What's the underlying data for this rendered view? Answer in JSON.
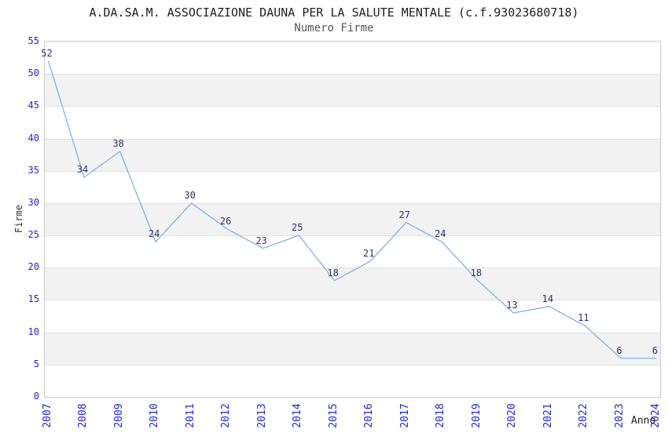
{
  "chart_data": {
    "type": "line",
    "title": "A.DA.SA.M. ASSOCIAZIONE DAUNA PER LA SALUTE MENTALE (c.f.93023680718)",
    "subtitle": "Numero Firme",
    "xlabel": "Anno",
    "ylabel": "Firme",
    "categories": [
      "2007",
      "2008",
      "2009",
      "2010",
      "2011",
      "2012",
      "2013",
      "2014",
      "2015",
      "2016",
      "2017",
      "2018",
      "2019",
      "2020",
      "2021",
      "2022",
      "2023",
      "2024"
    ],
    "values": [
      52,
      34,
      38,
      24,
      30,
      26,
      23,
      25,
      18,
      21,
      27,
      24,
      18,
      13,
      14,
      11,
      6,
      6
    ],
    "ylim": [
      0,
      55
    ],
    "ytick_step": 5,
    "grid": "horizontal-alternating-bands",
    "legend": "none",
    "data_labels": "shown-above-points",
    "colors": {
      "line": "#7fb2e5",
      "tick_label": "#2323d1",
      "data_label": "#303070",
      "band_fill": "#f2f2f2",
      "grid_line": "#e1e1e1",
      "plot_border": "#c9c9c9",
      "title": "#1f1f1f",
      "subtitle": "#555555",
      "axis_label": "#333333"
    }
  }
}
